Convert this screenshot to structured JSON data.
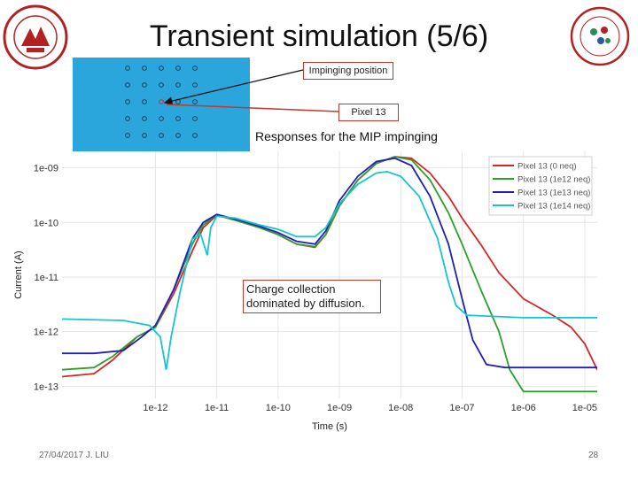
{
  "slide": {
    "title": "Transient simulation (5/6)",
    "subtitle": "Responses for the MIP impinging",
    "footer": "27/04/2017 J. LIU",
    "page_number": "28",
    "annotation": "Charge collection dominated by diffusion."
  },
  "pixel_map": {
    "callout_position": "Impinging position",
    "callout_pixel": "Pixel 13",
    "rows": 5,
    "cols": 5,
    "highlight_pixel": 13
  },
  "chart_data": {
    "type": "line",
    "xlabel": "Time (s)",
    "ylabel": "Current (A)",
    "xscale": "log",
    "yscale": "log",
    "xlim": [
      3e-14,
      1.6e-05
    ],
    "ylim": [
      6e-14,
      2e-09
    ],
    "xticks": [
      {
        "value": 1e-12,
        "label": "1e-12"
      },
      {
        "value": 1e-11,
        "label": "1e-11"
      },
      {
        "value": 1e-10,
        "label": "1e-10"
      },
      {
        "value": 1e-09,
        "label": "1e-09"
      },
      {
        "value": 1e-08,
        "label": "1e-08"
      },
      {
        "value": 1e-07,
        "label": "1e-07"
      },
      {
        "value": 1e-06,
        "label": "1e-06"
      },
      {
        "value": 1e-05,
        "label": "1e-05"
      }
    ],
    "yticks": [
      {
        "value": 1e-09,
        "label": "1e-09"
      },
      {
        "value": 1e-10,
        "label": "1e-10"
      },
      {
        "value": 1e-11,
        "label": "1e-11"
      },
      {
        "value": 1e-12,
        "label": "1e-12"
      },
      {
        "value": 1e-13,
        "label": "1e-13"
      }
    ],
    "legend_position": "top-right",
    "series": [
      {
        "name": "Pixel 13 (0 neq)",
        "color": "#d62728",
        "points": [
          [
            3e-14,
            1.5e-13
          ],
          [
            1e-13,
            1.7e-13
          ],
          [
            2e-13,
            3e-13
          ],
          [
            5e-13,
            8e-13
          ],
          [
            1e-12,
            1.2e-12
          ],
          [
            2e-12,
            5e-12
          ],
          [
            4e-12,
            3e-11
          ],
          [
            6e-12,
            8e-11
          ],
          [
            1e-11,
            1.35e-10
          ],
          [
            2e-11,
            1.1e-10
          ],
          [
            5e-11,
            8e-11
          ],
          [
            1e-10,
            6e-11
          ],
          [
            2e-10,
            4e-11
          ],
          [
            4e-10,
            3.5e-11
          ],
          [
            6e-10,
            6e-11
          ],
          [
            1e-09,
            2e-10
          ],
          [
            2e-09,
            6e-10
          ],
          [
            4e-09,
            1.2e-09
          ],
          [
            8e-09,
            1.6e-09
          ],
          [
            1.5e-08,
            1.5e-09
          ],
          [
            3e-08,
            8e-10
          ],
          [
            6e-08,
            3e-10
          ],
          [
            1e-07,
            1.2e-10
          ],
          [
            2e-07,
            4e-11
          ],
          [
            4e-07,
            1.2e-11
          ],
          [
            1e-06,
            4e-12
          ],
          [
            3e-06,
            2e-12
          ],
          [
            6e-06,
            1.2e-12
          ],
          [
            1e-05,
            6e-13
          ],
          [
            1.6e-05,
            2e-13
          ]
        ]
      },
      {
        "name": "Pixel 13 (1e12 neq)",
        "color": "#2ca02c",
        "points": [
          [
            3e-14,
            2e-13
          ],
          [
            1e-13,
            2.2e-13
          ],
          [
            2e-13,
            3.5e-13
          ],
          [
            5e-13,
            8e-13
          ],
          [
            1e-12,
            1.2e-12
          ],
          [
            2e-12,
            6e-12
          ],
          [
            4e-12,
            4e-11
          ],
          [
            6e-12,
            9e-11
          ],
          [
            1e-11,
            1.38e-10
          ],
          [
            2e-11,
            1.1e-10
          ],
          [
            5e-11,
            8e-11
          ],
          [
            1e-10,
            6e-11
          ],
          [
            2e-10,
            4e-11
          ],
          [
            4e-10,
            3.6e-11
          ],
          [
            6e-10,
            6e-11
          ],
          [
            1e-09,
            2e-10
          ],
          [
            2e-09,
            6e-10
          ],
          [
            4e-09,
            1.2e-09
          ],
          [
            8e-09,
            1.6e-09
          ],
          [
            1.5e-08,
            1.4e-09
          ],
          [
            3e-08,
            6e-10
          ],
          [
            6e-08,
            1.5e-10
          ],
          [
            1e-07,
            4e-11
          ],
          [
            2e-07,
            6e-12
          ],
          [
            4e-07,
            1e-12
          ],
          [
            6e-07,
            2e-13
          ],
          [
            1e-06,
            8e-14
          ],
          [
            1.6e-05,
            8e-14
          ]
        ]
      },
      {
        "name": "Pixel 13 (1e13 neq)",
        "color": "#1f1fb4",
        "points": [
          [
            3e-14,
            4e-13
          ],
          [
            1e-13,
            4e-13
          ],
          [
            3e-13,
            4.5e-13
          ],
          [
            6e-13,
            8e-13
          ],
          [
            1e-12,
            1.3e-12
          ],
          [
            2e-12,
            6e-12
          ],
          [
            4e-12,
            5e-11
          ],
          [
            6e-12,
            1e-10
          ],
          [
            1e-11,
            1.4e-10
          ],
          [
            2e-11,
            1.15e-10
          ],
          [
            5e-11,
            8.5e-11
          ],
          [
            1e-10,
            6.5e-11
          ],
          [
            2e-10,
            4.5e-11
          ],
          [
            4e-10,
            4e-11
          ],
          [
            6e-10,
            7e-11
          ],
          [
            1e-09,
            2.5e-10
          ],
          [
            2e-09,
            7e-10
          ],
          [
            4e-09,
            1.3e-09
          ],
          [
            8e-09,
            1.5e-09
          ],
          [
            1.5e-08,
            1.1e-09
          ],
          [
            3e-08,
            3e-10
          ],
          [
            6e-08,
            4e-11
          ],
          [
            1e-07,
            4e-12
          ],
          [
            1.5e-07,
            7e-13
          ],
          [
            2.5e-07,
            2.5e-13
          ],
          [
            5e-07,
            2.2e-13
          ],
          [
            1.6e-05,
            2.2e-13
          ]
        ]
      },
      {
        "name": "Pixel 13 (1e14 neq)",
        "color": "#17c5d0",
        "points": [
          [
            3e-14,
            1.7e-12
          ],
          [
            3e-13,
            1.6e-12
          ],
          [
            8e-13,
            1.3e-12
          ],
          [
            1.2e-12,
            8e-13
          ],
          [
            1.5e-12,
            2e-13
          ],
          [
            1.8e-12,
            8e-13
          ],
          [
            2.5e-12,
            5e-12
          ],
          [
            4e-12,
            5e-11
          ],
          [
            5.5e-12,
            6e-11
          ],
          [
            7e-12,
            2.5e-11
          ],
          [
            8e-12,
            8e-11
          ],
          [
            1e-11,
            1.3e-10
          ],
          [
            2e-11,
            1.2e-10
          ],
          [
            5e-11,
            9e-11
          ],
          [
            1e-10,
            7.5e-11
          ],
          [
            2e-10,
            5.5e-11
          ],
          [
            4e-10,
            5.5e-11
          ],
          [
            6e-10,
            8e-11
          ],
          [
            1e-09,
            2.2e-10
          ],
          [
            2e-09,
            5e-10
          ],
          [
            4e-09,
            8e-10
          ],
          [
            6e-09,
            8.5e-10
          ],
          [
            1e-08,
            7e-10
          ],
          [
            2e-08,
            3e-10
          ],
          [
            4e-08,
            5e-11
          ],
          [
            6e-08,
            8e-12
          ],
          [
            8e-08,
            3e-12
          ],
          [
            1.2e-07,
            2e-12
          ],
          [
            1e-06,
            1.8e-12
          ],
          [
            1.6e-05,
            1.8e-12
          ]
        ]
      }
    ]
  }
}
